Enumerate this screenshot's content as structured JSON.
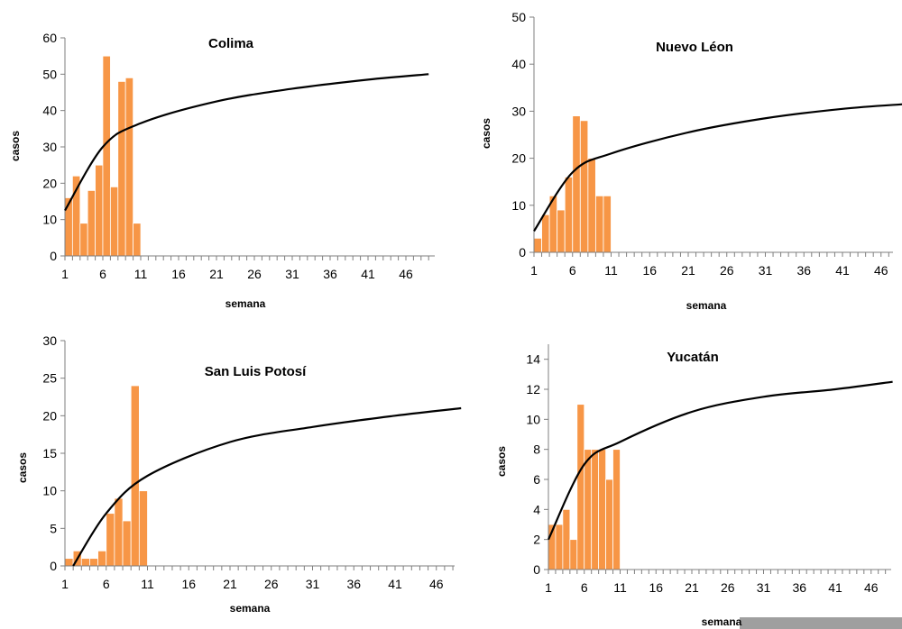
{
  "colors": {
    "bar": "#F79646",
    "bar_stroke": "#ffffff",
    "trend": "#000000",
    "axis": "#7f7f7f"
  },
  "chart_data": [
    {
      "type": "bar",
      "title": "Colima",
      "xlabel": "semana",
      "ylabel": "casos",
      "x_ticks": [
        1,
        6,
        11,
        16,
        21,
        26,
        31,
        36,
        41,
        46
      ],
      "y_ticks": [
        0,
        10,
        20,
        30,
        40,
        50,
        60
      ],
      "ylim": [
        0,
        60
      ],
      "xlim": [
        1,
        49
      ],
      "categories": [
        1,
        2,
        3,
        4,
        5,
        6,
        7,
        8,
        9,
        10
      ],
      "values": [
        16,
        22,
        9,
        18,
        25,
        55,
        19,
        48,
        49,
        9
      ],
      "trendline": {
        "type": "logarithmic",
        "x": [
          1,
          6,
          11,
          21,
          31,
          41,
          49
        ],
        "y": [
          12.5,
          30,
          36.5,
          42.5,
          46,
          48.5,
          50
        ]
      }
    },
    {
      "type": "bar",
      "title": "Nuevo Léon",
      "xlabel": "semana",
      "ylabel": "casos",
      "x_ticks": [
        1,
        6,
        11,
        16,
        21,
        26,
        31,
        36,
        41,
        46
      ],
      "y_ticks": [
        0,
        10,
        20,
        30,
        40,
        50
      ],
      "ylim": [
        0,
        50
      ],
      "xlim": [
        1,
        49
      ],
      "categories": [
        1,
        2,
        3,
        4,
        5,
        6,
        7,
        8,
        9,
        10
      ],
      "values": [
        3,
        8,
        12,
        9,
        16,
        29,
        28,
        20,
        12,
        12
      ],
      "trendline": {
        "type": "logarithmic",
        "x": [
          1,
          6,
          11,
          21,
          31,
          41,
          49
        ],
        "y": [
          4.5,
          17,
          21,
          25.5,
          28.5,
          30.5,
          31.5
        ]
      }
    },
    {
      "type": "bar",
      "title": "San Luis Potosí",
      "xlabel": "semana",
      "ylabel": "casos",
      "x_ticks": [
        1,
        6,
        11,
        16,
        21,
        26,
        31,
        36,
        41,
        46
      ],
      "y_ticks": [
        0,
        5,
        10,
        15,
        20,
        25,
        30
      ],
      "ylim": [
        0,
        30
      ],
      "xlim": [
        1,
        49
      ],
      "categories": [
        1,
        2,
        3,
        4,
        5,
        6,
        7,
        8,
        9,
        10
      ],
      "values": [
        1,
        2,
        1,
        1,
        2,
        7,
        9,
        6,
        24,
        10
      ],
      "trendline": {
        "type": "logarithmic",
        "x": [
          2,
          6,
          11,
          21,
          31,
          41,
          49
        ],
        "y": [
          0,
          7,
          12,
          16.5,
          18.5,
          20,
          21
        ]
      }
    },
    {
      "type": "bar",
      "title": "Yucatán",
      "xlabel": "semana",
      "ylabel": "casos",
      "x_ticks": [
        1,
        6,
        11,
        16,
        21,
        26,
        31,
        36,
        41,
        46
      ],
      "y_ticks": [
        0,
        2,
        4,
        6,
        8,
        10,
        12,
        14
      ],
      "ylim": [
        0,
        15
      ],
      "xlim": [
        1,
        49
      ],
      "categories": [
        1,
        2,
        3,
        4,
        5,
        6,
        7,
        8,
        9,
        10
      ],
      "values": [
        3,
        3,
        4,
        2,
        11,
        8,
        8,
        8,
        6,
        8
      ],
      "trendline": {
        "type": "logarithmic",
        "x": [
          1,
          6,
          11,
          21,
          31,
          41,
          49
        ],
        "y": [
          2,
          7,
          8.5,
          10.5,
          11.5,
          12,
          12.5
        ]
      }
    }
  ]
}
